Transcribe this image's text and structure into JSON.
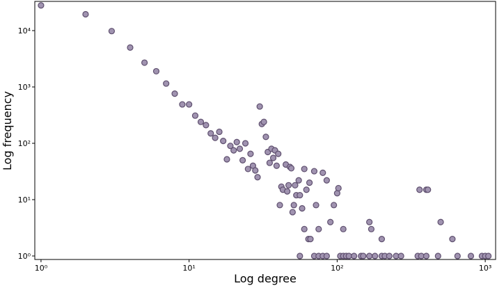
{
  "chart_data": {
    "type": "scatter",
    "xlabel": "Log degree",
    "ylabel": "Log frequency",
    "xscale": "log",
    "yscale": "log",
    "xlim": [
      0.908,
      1175
    ],
    "ylim": [
      0.867,
      33000
    ],
    "xticks": [
      {
        "value": 1,
        "label": "10⁰"
      },
      {
        "value": 10,
        "label": "10¹"
      },
      {
        "value": 100,
        "label": "10²"
      },
      {
        "value": 1000,
        "label": "10³"
      }
    ],
    "yticks": [
      {
        "value": 1,
        "label": "10⁰"
      },
      {
        "value": 10,
        "label": "10¹"
      },
      {
        "value": 100,
        "label": "10²"
      },
      {
        "value": 1000,
        "label": "10³"
      },
      {
        "value": 10000,
        "label": "10⁴"
      }
    ],
    "color": "#a093b0",
    "edgecolor": "#5e4f6e",
    "x": [
      1,
      2,
      3,
      4,
      5,
      6,
      7,
      8,
      9,
      10,
      11,
      12,
      13,
      14,
      15,
      16,
      17,
      18,
      19,
      20,
      21,
      22,
      23,
      24,
      25,
      26,
      27,
      28,
      29,
      30,
      31,
      32,
      33,
      34,
      35,
      36,
      37,
      38,
      39,
      40,
      41,
      42,
      43,
      45,
      46,
      47,
      48,
      49,
      50,
      51,
      52,
      53,
      55,
      56,
      58,
      60,
      60,
      62,
      64,
      65,
      66,
      70,
      72,
      75,
      80,
      85,
      90,
      95,
      100,
      102,
      110,
      165,
      170,
      200,
      360,
      400,
      410,
      500,
      600,
      56,
      70,
      75,
      80,
      85,
      105,
      110,
      115,
      120,
      130,
      145,
      150,
      165,
      180,
      200,
      210,
      225,
      250,
      270,
      350,
      370,
      400,
      480,
      650,
      800,
      950,
      1000,
      1050
    ],
    "values": [
      28000,
      19500,
      9800,
      5000,
      2700,
      1900,
      1150,
      760,
      490,
      490,
      310,
      240,
      210,
      150,
      125,
      160,
      110,
      52,
      90,
      75,
      105,
      80,
      50,
      100,
      35,
      65,
      40,
      33,
      25,
      450,
      220,
      240,
      130,
      70,
      45,
      80,
      55,
      75,
      40,
      65,
      8,
      17,
      15,
      42,
      14,
      18,
      38,
      36,
      6,
      8,
      18,
      12,
      22,
      12,
      7,
      35,
      3,
      15,
      2,
      20,
      2,
      32,
      8,
      3,
      30,
      22,
      4,
      8,
      13,
      16,
      3,
      4,
      3,
      2,
      15,
      15,
      15,
      4,
      2,
      1,
      1,
      1,
      1,
      1,
      1,
      1,
      1,
      1,
      1,
      1,
      1,
      1,
      1,
      1,
      1,
      1,
      1,
      1,
      1,
      1,
      1,
      1,
      1,
      1,
      1,
      1,
      1
    ]
  }
}
